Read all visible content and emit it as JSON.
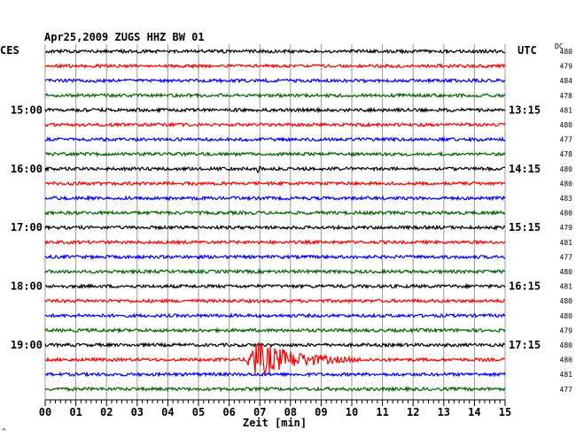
{
  "header": {
    "title": "Apr25,2009   ZUGS HHZ BW 01",
    "left_label": "CES",
    "right_label": "UTC",
    "dc_label": "DC"
  },
  "chart_data": {
    "type": "line",
    "title": "Apr25,2009   ZUGS HHZ BW 01",
    "xlabel": "Zeit [min]",
    "x_ticks": [
      "00",
      "01",
      "02",
      "03",
      "04",
      "05",
      "06",
      "07",
      "08",
      "09",
      "10",
      "11",
      "12",
      "13",
      "14",
      "15"
    ],
    "xlim": [
      0,
      15
    ],
    "grid": true,
    "left_time_labels": [
      "15:00",
      "16:00",
      "17:00",
      "18:00",
      "19:00"
    ],
    "right_time_labels": [
      "13:15",
      "14:15",
      "15:15",
      "16:15",
      "17:15"
    ],
    "label_every_n_traces": 4,
    "trace_colors": [
      "#000000",
      "#ff0000",
      "#0000ff",
      "#006400"
    ],
    "dc_values": [
      480,
      479,
      484,
      478,
      481,
      480,
      477,
      478,
      480,
      480,
      483,
      480,
      479,
      481,
      477,
      480,
      481,
      480,
      480,
      479,
      480,
      480,
      481,
      477
    ],
    "events": [
      {
        "trace": 8,
        "start_min": 6.9,
        "end_min": 7.6,
        "amplitude": 6
      },
      {
        "trace": 21,
        "start_min": 6.5,
        "end_min": 11.5,
        "amplitude": 22
      }
    ]
  },
  "footer": {
    "corner_mark": "^"
  }
}
